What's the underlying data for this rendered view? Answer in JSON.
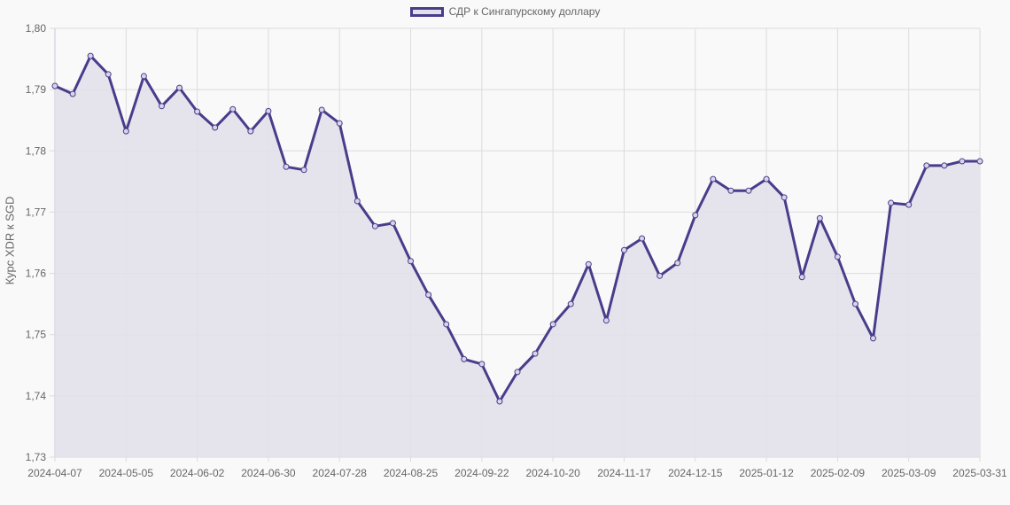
{
  "legend": {
    "label": "СДР к Сингапурскому доллару"
  },
  "axes": {
    "ylabel": "Курс XDR к SGD"
  },
  "colors": {
    "line": "#483d8b",
    "fill": "#e2e0ea",
    "grid": "#dcdcdc",
    "background": "#f9f9f9"
  },
  "chart_data": {
    "type": "line",
    "title": "",
    "xlabel": "",
    "ylabel": "Курс XDR к SGD",
    "ylim": [
      1.73,
      1.8
    ],
    "yticks": [
      "1,73",
      "1,74",
      "1,75",
      "1,76",
      "1,77",
      "1,78",
      "1,79",
      "1,80"
    ],
    "xtick_labels": [
      "2024-04-07",
      "2024-05-05",
      "2024-06-02",
      "2024-06-30",
      "2024-07-28",
      "2024-08-25",
      "2024-09-22",
      "2024-10-20",
      "2024-11-17",
      "2024-12-15",
      "2025-01-12",
      "2025-02-09",
      "2025-03-09",
      "2025-03-31"
    ],
    "legend_position": "top",
    "grid": true,
    "fill": true,
    "series": [
      {
        "name": "СДР к Сингапурскому доллару",
        "values": [
          1.7906,
          1.7893,
          1.7955,
          1.7925,
          1.7832,
          1.7922,
          1.7873,
          1.7903,
          1.7864,
          1.7838,
          1.7868,
          1.7832,
          1.7865,
          1.7774,
          1.7769,
          1.7867,
          1.7845,
          1.7718,
          1.7677,
          1.7682,
          1.762,
          1.7565,
          1.7517,
          1.746,
          1.7452,
          1.7391,
          1.7439,
          1.7469,
          1.7517,
          1.755,
          1.7615,
          1.7523,
          1.7638,
          1.7657,
          1.7596,
          1.7617,
          1.7695,
          1.7754,
          1.7735,
          1.7735,
          1.7754,
          1.7724,
          1.7594,
          1.769,
          1.7627,
          1.755,
          1.7494,
          1.7715,
          1.7712,
          1.7776,
          1.7776,
          1.7783,
          1.7783
        ]
      }
    ]
  }
}
